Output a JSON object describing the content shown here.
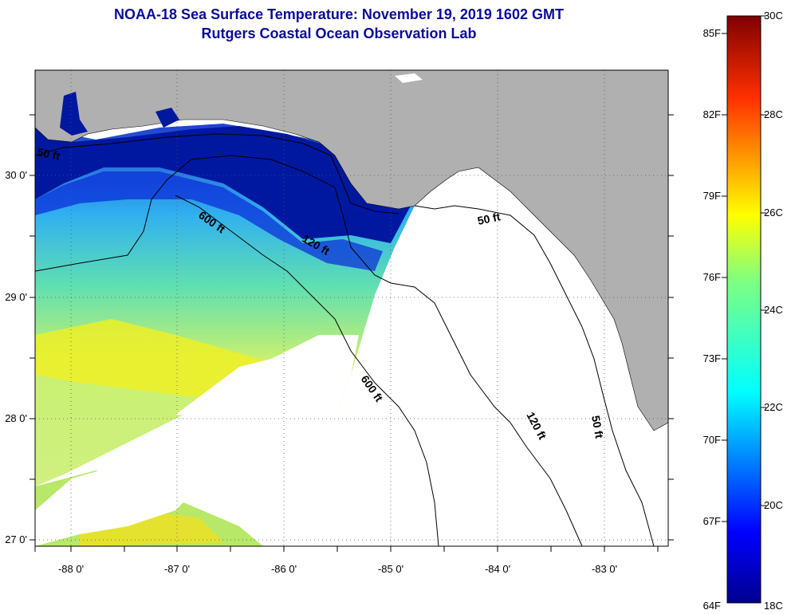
{
  "header": {
    "title_line1": "NOAA-18 Sea Surface Temperature:  November 19, 2019 1602 GMT",
    "title_line2": "Rutgers Coastal Ocean Observation Lab"
  },
  "map": {
    "lon_ticks": [
      "-88 0'",
      "-87 0'",
      "-86 0'",
      "-85 0'",
      "-84 0'",
      "-83 0'"
    ],
    "lat_ticks": [
      "30 0'",
      "29 0'",
      "28 0'",
      "27 0'"
    ],
    "contours": [
      "50 ft",
      "120 ft",
      "600 ft",
      "600 ft",
      "120 ft",
      "50 ft",
      "50 ft"
    ],
    "colors": {
      "land": "#b0b0b0",
      "cloud": "#ffffff",
      "contour": "#000000"
    }
  },
  "colorbar": {
    "fahrenheit": [
      "85F",
      "82F",
      "79F",
      "76F",
      "73F",
      "70F",
      "67F",
      "64F"
    ],
    "celsius": [
      "30C",
      "28C",
      "26C",
      "24C",
      "22C",
      "20C",
      "18C"
    ]
  }
}
